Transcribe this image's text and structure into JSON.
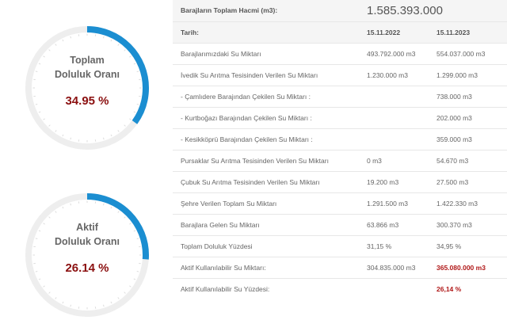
{
  "gauges": [
    {
      "title_line1": "Toplam",
      "title_line2": "Doluluk Oranı",
      "value": "34.95 %",
      "fraction": 0.3495,
      "color": "#1b8ed1"
    },
    {
      "title_line1": "Aktif",
      "title_line2": "Doluluk Oranı",
      "value": "26.14 %",
      "fraction": 0.2614,
      "color": "#1b8ed1"
    }
  ],
  "table": {
    "total_volume_label": "Barajların Toplam Hacmi (m3):",
    "total_volume_value": "1.585.393.000",
    "date_label": "Tarih:",
    "date_1": "15.11.2022",
    "date_2": "15.11.2023",
    "rows": [
      {
        "label": "Barajlarımızdaki Su Miktarı",
        "v1": "493.792.000 m3",
        "v2": "554.037.000 m3"
      },
      {
        "label": "İvedik Su Arıtma Tesisinden Verilen Su Miktarı",
        "v1": "1.230.000 m3",
        "v2": "1.299.000 m3"
      },
      {
        "label": "- Çamlıdere Barajından Çekilen Su Miktarı :",
        "v1": "",
        "v2": "738.000 m3"
      },
      {
        "label": "- Kurtboğazı Barajından Çekilen Su Miktarı :",
        "v1": "",
        "v2": "202.000 m3"
      },
      {
        "label": "- Kesikköprü Barajından Çekilen Su Miktarı :",
        "v1": "",
        "v2": "359.000 m3"
      },
      {
        "label": "Pursaklar Su Arıtma Tesisinden Verilen Su Miktarı",
        "v1": "0 m3",
        "v2": "54.670 m3"
      },
      {
        "label": "Çubuk Su Arıtma Tesisinden Verilen Su Miktarı",
        "v1": "19.200 m3",
        "v2": "27.500 m3"
      },
      {
        "label": "Şehre Verilen Toplam Su Miktarı",
        "v1": "1.291.500 m3",
        "v2": "1.422.330 m3"
      },
      {
        "label": "Barajlara Gelen Su Miktarı",
        "v1": "63.866 m3",
        "v2": "300.370 m3"
      },
      {
        "label": "Toplam Doluluk Yüzdesi",
        "v1": "31,15 %",
        "v2": "34,95 %"
      },
      {
        "label": "Aktif Kullanılabilir Su Miktarı:",
        "v1": "304.835.000 m3",
        "v2": "365.080.000 m3"
      },
      {
        "label": "Aktif Kullanılabilir Su Yüzdesi:",
        "v1": "",
        "v2": "26,14 %"
      }
    ]
  }
}
